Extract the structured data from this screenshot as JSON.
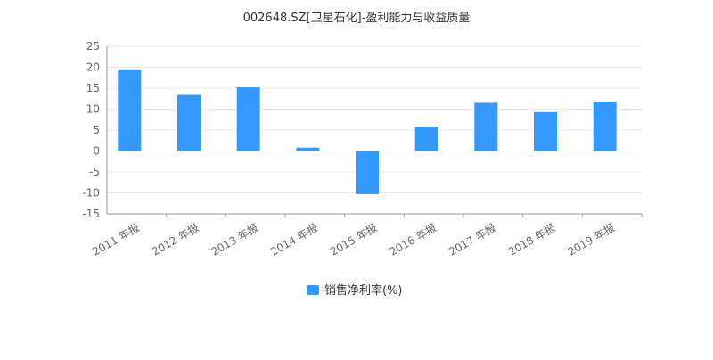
{
  "chart_data": {
    "type": "bar",
    "title": "002648.SZ[卫星石化]-盈利能力与收益质量",
    "categories": [
      "2011 年报",
      "2012 年报",
      "2013 年报",
      "2014 年报",
      "2015 年报",
      "2016 年报",
      "2017 年报",
      "2018 年报",
      "2019 年报"
    ],
    "series": [
      {
        "name": "销售净利率(%)",
        "color": "#3399ff",
        "values": [
          19.5,
          13.4,
          15.2,
          0.8,
          -10.3,
          5.8,
          11.5,
          9.3,
          11.8
        ]
      }
    ],
    "ylim": [
      -15,
      25
    ],
    "yticks": [
      25,
      20,
      15,
      10,
      5,
      0,
      -5,
      -10,
      -15
    ],
    "grid": true,
    "legend_position": "bottom"
  }
}
